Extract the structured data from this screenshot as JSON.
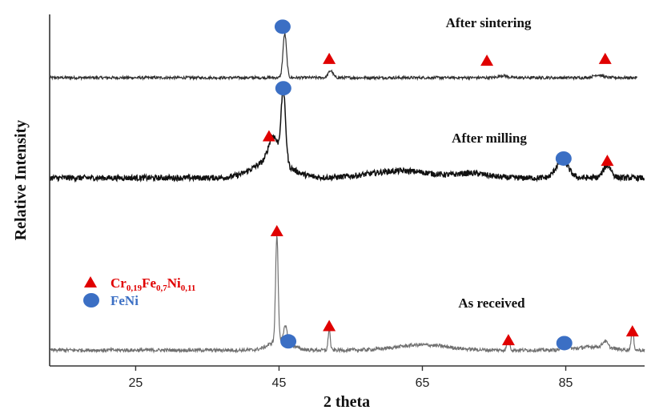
{
  "chart_data": {
    "type": "line",
    "title": "",
    "xlabel": "2 theta",
    "ylabel": "Relative Intensity",
    "xlim": [
      13,
      96
    ],
    "xticks": [
      25,
      45,
      65,
      85
    ],
    "xtick_labels": [
      "25",
      "45",
      "65",
      "85"
    ],
    "y_ticks_shown": false,
    "grid": false,
    "colors": {
      "alloy": "#e00000",
      "feni": "#3b6fc4",
      "legend_alloy_text": "#e00000",
      "legend_feni_text": "#3b6fc4"
    },
    "legend": {
      "placement": "middle-left",
      "entries": [
        {
          "marker": "triangle",
          "color": "#e00000",
          "base": "Cr",
          "parts": [
            {
              "el": "Cr",
              "sub": "0,19"
            },
            {
              "el": "Fe",
              "sub": "0,7"
            },
            {
              "el": "Ni",
              "sub": "0,11"
            }
          ]
        },
        {
          "marker": "circle",
          "color": "#3b6fc4",
          "label": "FeNi"
        }
      ]
    },
    "series": [
      {
        "name": "After sintering",
        "stroke": "#303030",
        "baseline": 0.82,
        "noise": 0.004,
        "x_start": 13,
        "x_end": 95,
        "peaks": [
          {
            "x": 45.8,
            "h": 0.125,
            "w": 0.35
          },
          {
            "x": 52.2,
            "h": 0.02,
            "w": 0.45
          },
          {
            "x": 76.2,
            "h": 0.006,
            "w": 0.8
          },
          {
            "x": 89.5,
            "h": 0.008,
            "w": 0.9
          }
        ],
        "humps": [],
        "markers": [
          {
            "type": "circle",
            "x": 45.5,
            "level": 0.965
          },
          {
            "type": "triangle",
            "x": 52.0,
            "level": 0.875
          },
          {
            "type": "triangle",
            "x": 74.0,
            "level": 0.87
          },
          {
            "type": "triangle",
            "x": 90.5,
            "level": 0.875
          }
        ]
      },
      {
        "name": "After milling",
        "stroke": "#111111",
        "baseline": 0.535,
        "noise": 0.008,
        "x_start": 13,
        "x_end": 96,
        "peaks": [
          {
            "x": 45.6,
            "h": 0.2,
            "w": 0.45
          },
          {
            "x": 44.2,
            "h": 0.07,
            "w": 0.9
          },
          {
            "x": 84.5,
            "h": 0.05,
            "w": 1.2
          },
          {
            "x": 90.8,
            "h": 0.035,
            "w": 0.8
          }
        ],
        "humps": [
          {
            "x": 44.0,
            "h": 0.05,
            "w": 3.5
          },
          {
            "x": 62.0,
            "h": 0.02,
            "w": 6.0
          },
          {
            "x": 72.0,
            "h": 0.012,
            "w": 3.0
          }
        ],
        "markers": [
          {
            "type": "circle",
            "x": 45.6,
            "level": 0.79
          },
          {
            "type": "triangle",
            "x": 43.6,
            "level": 0.655
          },
          {
            "type": "circle",
            "x": 84.7,
            "level": 0.59
          },
          {
            "type": "triangle",
            "x": 90.8,
            "level": 0.585
          }
        ]
      },
      {
        "name": "As received",
        "stroke": "#707070",
        "baseline": 0.045,
        "noise": 0.005,
        "x_start": 13,
        "x_end": 96,
        "peaks": [
          {
            "x": 44.7,
            "h": 0.3,
            "w": 0.25
          },
          {
            "x": 45.9,
            "h": 0.045,
            "w": 0.3
          },
          {
            "x": 52.0,
            "h": 0.06,
            "w": 0.2
          },
          {
            "x": 77.0,
            "h": 0.04,
            "w": 0.25
          },
          {
            "x": 85.0,
            "h": 0.015,
            "w": 0.6
          },
          {
            "x": 90.5,
            "h": 0.018,
            "w": 0.5
          },
          {
            "x": 94.3,
            "h": 0.055,
            "w": 0.25
          }
        ],
        "humps": [
          {
            "x": 45.2,
            "h": 0.03,
            "w": 2.0
          },
          {
            "x": 65.0,
            "h": 0.015,
            "w": 5.0
          },
          {
            "x": 89.0,
            "h": 0.01,
            "w": 3.0
          }
        ],
        "markers": [
          {
            "type": "triangle",
            "x": 44.7,
            "level": 0.385
          },
          {
            "type": "circle",
            "x": 46.3,
            "level": 0.07
          },
          {
            "type": "triangle",
            "x": 52.0,
            "level": 0.115
          },
          {
            "type": "triangle",
            "x": 77.0,
            "level": 0.075
          },
          {
            "type": "circle",
            "x": 84.8,
            "level": 0.065
          },
          {
            "type": "triangle",
            "x": 94.3,
            "level": 0.1
          }
        ]
      }
    ]
  }
}
